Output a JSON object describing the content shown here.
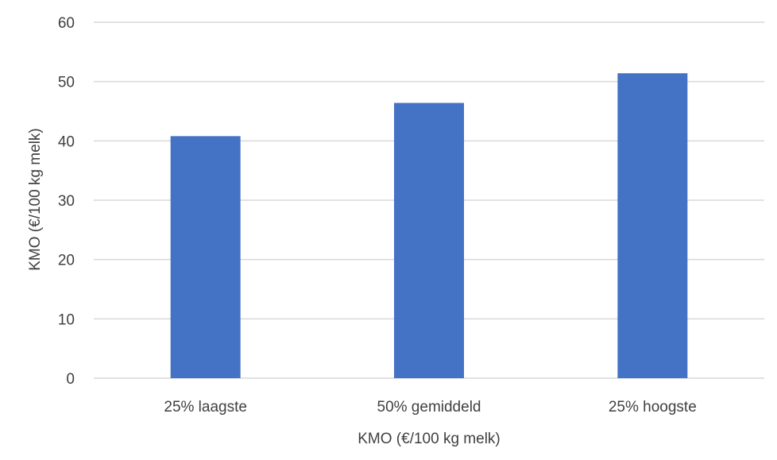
{
  "chart_data": {
    "type": "bar",
    "title": "",
    "categories": [
      "25% laagste",
      "50% gemiddeld",
      "25% hoogste"
    ],
    "series": [
      {
        "values": [
          40.8,
          46.4,
          51.4
        ],
        "color": "#4472c4"
      }
    ],
    "xlabel": "KMO (€/100 kg melk)",
    "ylabel": "KMO (€/100 kg melk)",
    "ylim": [
      0,
      60
    ],
    "yticks": [
      0,
      10,
      20,
      30,
      40,
      50,
      60
    ],
    "grid": true,
    "legend": "none",
    "colors": {
      "bar": "#4472c4",
      "grid": "#d9d9d9",
      "text": "#404040"
    }
  }
}
